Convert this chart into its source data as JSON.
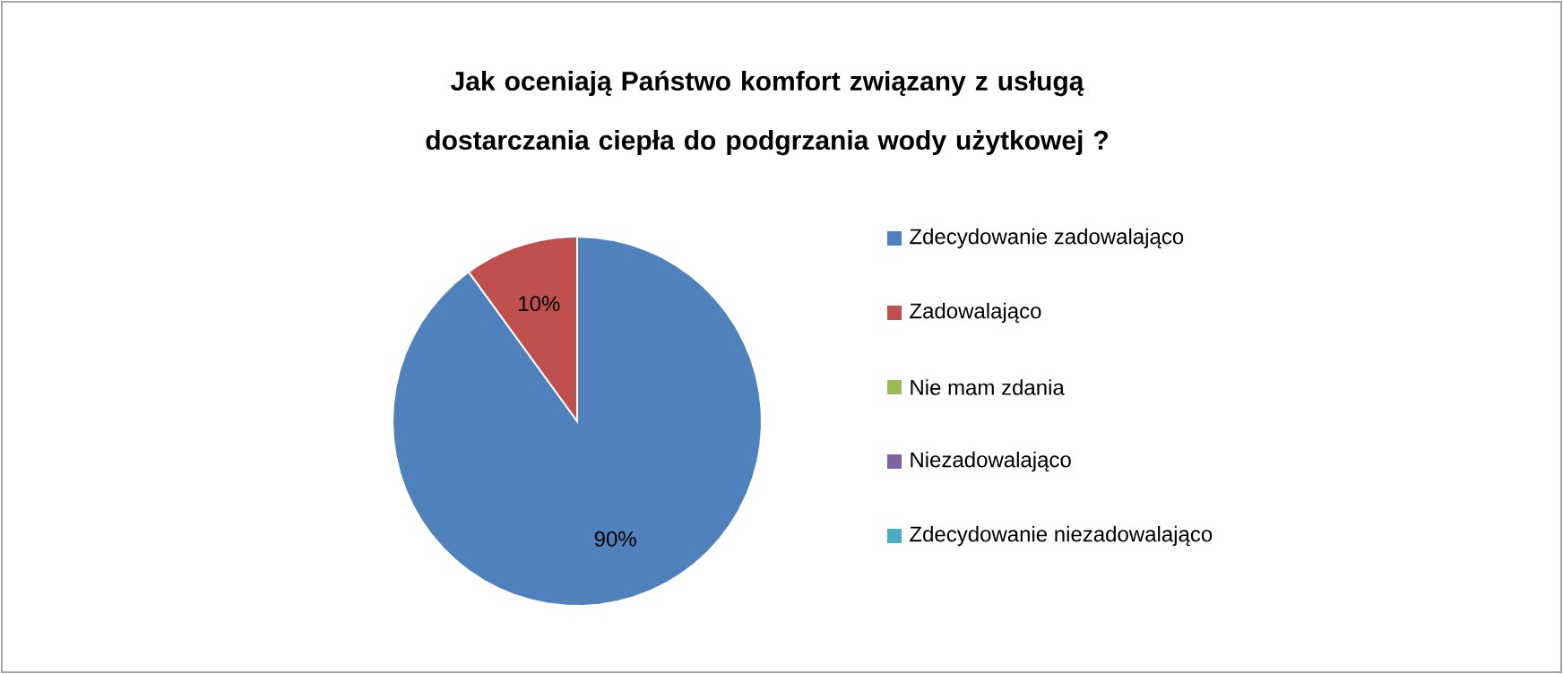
{
  "chart_data": {
    "type": "pie",
    "title": "Jak oceniają Państwo komfort związany z usługą dostarczania ciepła do podgrzania wody użytkowej ?",
    "categories": [
      "Zdecydowanie zadowalająco",
      "Zadowalająco",
      "Nie mam zdania",
      "Niezadowalająco",
      "Zdecydowanie niezadowalająco"
    ],
    "values": [
      90,
      10,
      0,
      0,
      0
    ],
    "colors": [
      "#4f81bd",
      "#c0504d",
      "#9bbb59",
      "#8064a2",
      "#4bacc6"
    ],
    "value_labels": [
      "90%",
      "10%",
      null,
      null,
      null
    ],
    "legend": "right"
  }
}
